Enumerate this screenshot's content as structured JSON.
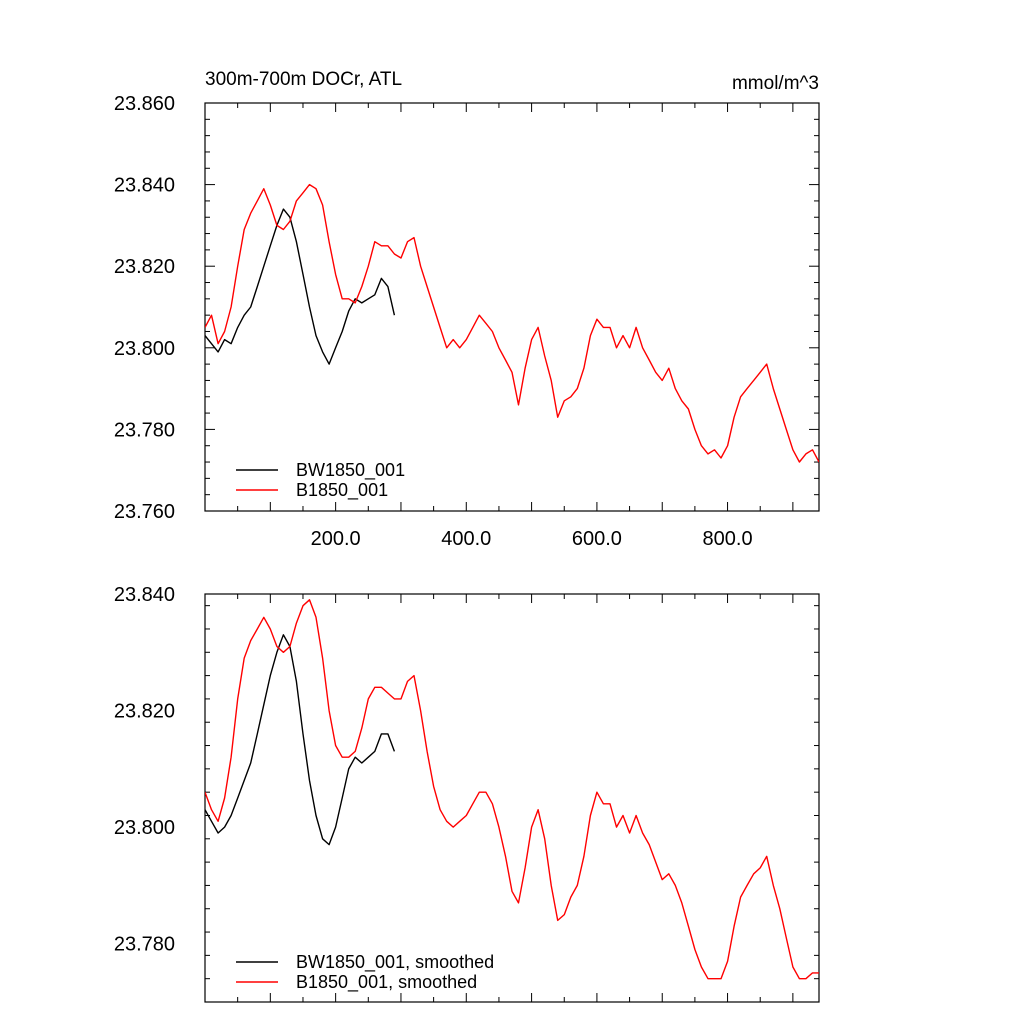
{
  "chart_data": [
    {
      "type": "line",
      "title": "300m-700m DOCr, ATL",
      "units": "mmol/m^3",
      "xlabel": "",
      "ylabel": "",
      "xlim": [
        0,
        940
      ],
      "ylim": [
        23.76,
        23.86
      ],
      "xticks": [
        "200.0",
        "400.0",
        "600.0",
        "800.0"
      ],
      "yticks": [
        "23.760",
        "23.780",
        "23.800",
        "23.820",
        "23.840",
        "23.860"
      ],
      "legend_position": "bottom-left",
      "series": [
        {
          "name": "BW1850_001",
          "color": "#000000",
          "x": [
            0,
            10,
            20,
            30,
            40,
            50,
            60,
            70,
            80,
            90,
            100,
            110,
            120,
            130,
            140,
            150,
            160,
            170,
            180,
            190,
            200,
            210,
            220,
            230,
            240,
            250,
            260,
            270,
            280,
            290
          ],
          "y": [
            23.803,
            23.801,
            23.799,
            23.802,
            23.801,
            23.805,
            23.808,
            23.81,
            23.815,
            23.82,
            23.825,
            23.83,
            23.834,
            23.832,
            23.826,
            23.818,
            23.81,
            23.803,
            23.799,
            23.796,
            23.8,
            23.804,
            23.809,
            23.812,
            23.811,
            23.812,
            23.813,
            23.817,
            23.815,
            23.808
          ]
        },
        {
          "name": "B1850_001",
          "color": "#ff0000",
          "x": [
            0,
            10,
            20,
            30,
            40,
            50,
            60,
            70,
            80,
            90,
            100,
            110,
            120,
            130,
            140,
            150,
            160,
            170,
            180,
            190,
            200,
            210,
            220,
            230,
            240,
            250,
            260,
            270,
            280,
            290,
            300,
            310,
            320,
            330,
            340,
            350,
            360,
            370,
            380,
            390,
            400,
            410,
            420,
            430,
            440,
            450,
            460,
            470,
            480,
            490,
            500,
            510,
            520,
            530,
            540,
            550,
            560,
            570,
            580,
            590,
            600,
            610,
            620,
            630,
            640,
            650,
            660,
            670,
            680,
            690,
            700,
            710,
            720,
            730,
            740,
            750,
            760,
            770,
            780,
            790,
            800,
            810,
            820,
            830,
            840,
            850,
            860,
            870,
            880,
            890,
            900,
            910,
            920,
            930,
            940
          ],
          "y": [
            23.805,
            23.808,
            23.801,
            23.804,
            23.81,
            23.82,
            23.829,
            23.833,
            23.836,
            23.839,
            23.835,
            23.83,
            23.829,
            23.831,
            23.836,
            23.838,
            23.84,
            23.839,
            23.835,
            23.826,
            23.818,
            23.812,
            23.812,
            23.811,
            23.815,
            23.82,
            23.826,
            23.825,
            23.825,
            23.823,
            23.822,
            23.826,
            23.827,
            23.82,
            23.815,
            23.81,
            23.805,
            23.8,
            23.802,
            23.8,
            23.802,
            23.805,
            23.808,
            23.806,
            23.804,
            23.8,
            23.797,
            23.794,
            23.786,
            23.795,
            23.802,
            23.805,
            23.798,
            23.792,
            23.783,
            23.787,
            23.788,
            23.79,
            23.795,
            23.803,
            23.807,
            23.805,
            23.805,
            23.8,
            23.803,
            23.8,
            23.805,
            23.8,
            23.797,
            23.794,
            23.792,
            23.795,
            23.79,
            23.787,
            23.785,
            23.78,
            23.776,
            23.774,
            23.775,
            23.773,
            23.776,
            23.783,
            23.788,
            23.79,
            23.792,
            23.794,
            23.796,
            23.79,
            23.785,
            23.78,
            23.775,
            23.772,
            23.774,
            23.775,
            23.772
          ]
        }
      ]
    },
    {
      "type": "line",
      "title": "",
      "xlabel": "",
      "ylabel": "",
      "xlim": [
        0,
        940
      ],
      "ylim": [
        23.77,
        23.84
      ],
      "xticks": [],
      "yticks": [
        "23.780",
        "23.800",
        "23.820",
        "23.840"
      ],
      "legend_position": "bottom-left",
      "series": [
        {
          "name": "BW1850_001, smoothed",
          "color": "#000000",
          "x": [
            0,
            10,
            20,
            30,
            40,
            50,
            60,
            70,
            80,
            90,
            100,
            110,
            120,
            130,
            140,
            150,
            160,
            170,
            180,
            190,
            200,
            210,
            220,
            230,
            240,
            250,
            260,
            270,
            280,
            290
          ],
          "y": [
            23.803,
            23.801,
            23.799,
            23.8,
            23.802,
            23.805,
            23.808,
            23.811,
            23.816,
            23.821,
            23.826,
            23.83,
            23.833,
            23.831,
            23.825,
            23.816,
            23.808,
            23.802,
            23.798,
            23.797,
            23.8,
            23.805,
            23.81,
            23.812,
            23.811,
            23.812,
            23.813,
            23.816,
            23.816,
            23.813
          ]
        },
        {
          "name": "B1850_001, smoothed",
          "color": "#ff0000",
          "x": [
            0,
            10,
            20,
            30,
            40,
            50,
            60,
            70,
            80,
            90,
            100,
            110,
            120,
            130,
            140,
            150,
            160,
            170,
            180,
            190,
            200,
            210,
            220,
            230,
            240,
            250,
            260,
            270,
            280,
            290,
            300,
            310,
            320,
            330,
            340,
            350,
            360,
            370,
            380,
            390,
            400,
            410,
            420,
            430,
            440,
            450,
            460,
            470,
            480,
            490,
            500,
            510,
            520,
            530,
            540,
            550,
            560,
            570,
            580,
            590,
            600,
            610,
            620,
            630,
            640,
            650,
            660,
            670,
            680,
            690,
            700,
            710,
            720,
            730,
            740,
            750,
            760,
            770,
            780,
            790,
            800,
            810,
            820,
            830,
            840,
            850,
            860,
            870,
            880,
            890,
            900,
            910,
            920,
            930,
            940
          ],
          "y": [
            23.806,
            23.803,
            23.801,
            23.805,
            23.812,
            23.822,
            23.829,
            23.832,
            23.834,
            23.836,
            23.834,
            23.831,
            23.83,
            23.831,
            23.835,
            23.838,
            23.839,
            23.836,
            23.829,
            23.82,
            23.814,
            23.812,
            23.812,
            23.813,
            23.817,
            23.822,
            23.824,
            23.824,
            23.823,
            23.822,
            23.822,
            23.825,
            23.826,
            23.82,
            23.813,
            23.807,
            23.803,
            23.801,
            23.8,
            23.801,
            23.802,
            23.804,
            23.806,
            23.806,
            23.804,
            23.8,
            23.795,
            23.789,
            23.787,
            23.793,
            23.8,
            23.803,
            23.798,
            23.79,
            23.784,
            23.785,
            23.788,
            23.79,
            23.795,
            23.802,
            23.806,
            23.804,
            23.804,
            23.8,
            23.802,
            23.799,
            23.802,
            23.799,
            23.797,
            23.794,
            23.791,
            23.792,
            23.79,
            23.787,
            23.783,
            23.779,
            23.776,
            23.774,
            23.774,
            23.774,
            23.777,
            23.783,
            23.788,
            23.79,
            23.792,
            23.793,
            23.795,
            23.79,
            23.786,
            23.781,
            23.776,
            23.774,
            23.774,
            23.775,
            23.775
          ]
        }
      ]
    }
  ]
}
